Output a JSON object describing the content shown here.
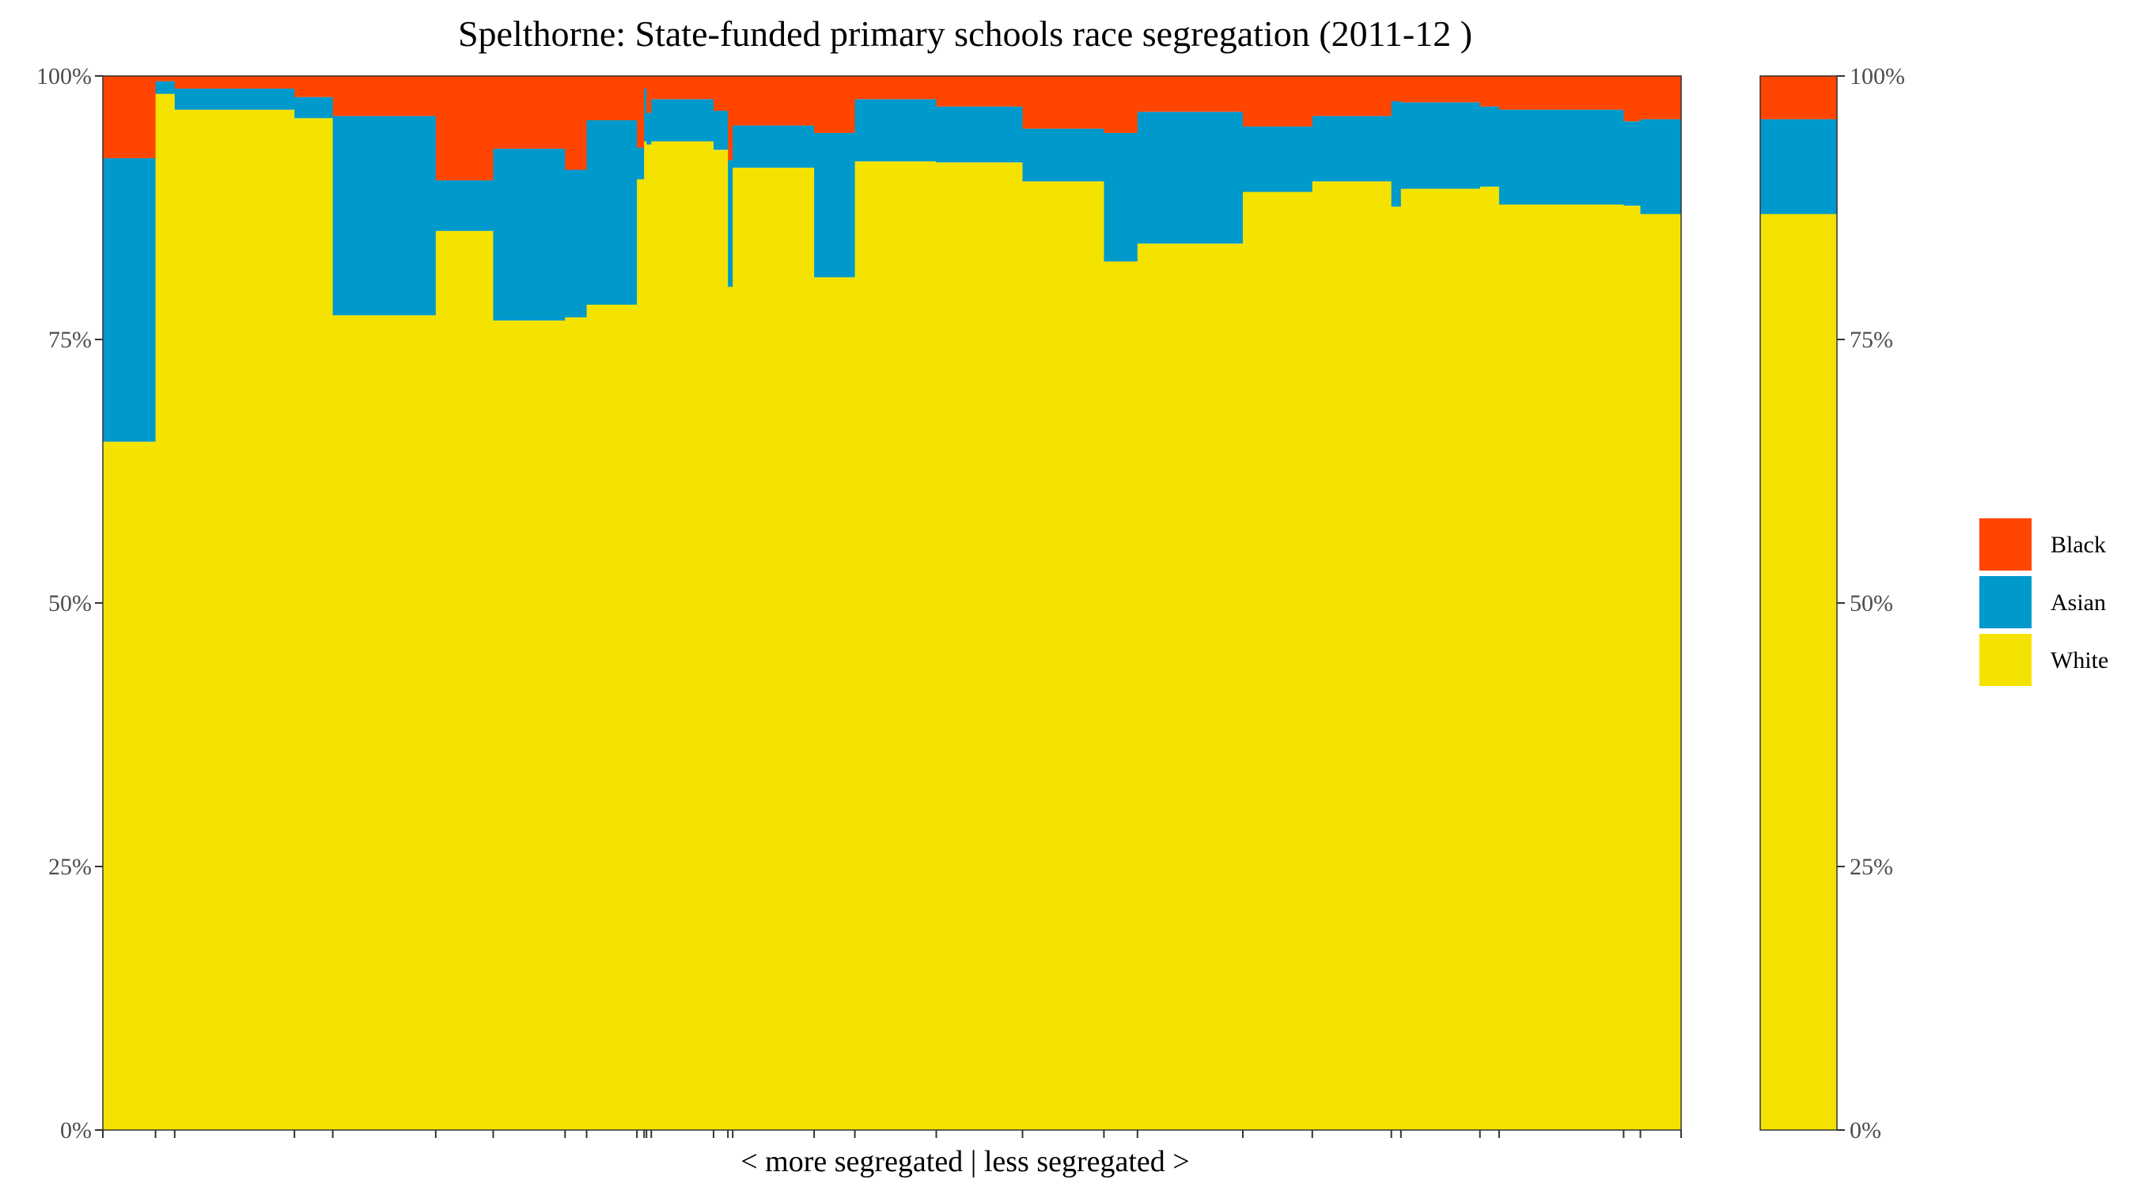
{
  "chart_data": {
    "type": "bar",
    "title": "Spelthorne: State-funded primary schools race segregation (2011-12 )",
    "xlabel": "< more segregated | less segregated >",
    "ylabel": "",
    "ylim": [
      0,
      100
    ],
    "yticks": [
      "0%",
      "25%",
      "50%",
      "75%",
      "100%"
    ],
    "stack_order": [
      "White",
      "Asian",
      "Black"
    ],
    "colors": {
      "White": "#F4E300",
      "Asian": "#0099CC",
      "Black": "#FF4500"
    },
    "legend": {
      "placement": "right",
      "entries": [
        "Black",
        "Asian",
        "White"
      ]
    },
    "grid": false,
    "schools": [
      {
        "w": 2.2,
        "White": 65.3,
        "Asian": 26.9,
        "Black": 7.8
      },
      {
        "w": 0.8,
        "White": 98.3,
        "Asian": 1.2,
        "Black": 0.5
      },
      {
        "w": 5.0,
        "White": 96.8,
        "Asian": 2.0,
        "Black": 1.2
      },
      {
        "w": 1.6,
        "White": 96.0,
        "Asian": 2.0,
        "Black": 2.0
      },
      {
        "w": 4.3,
        "White": 77.3,
        "Asian": 18.9,
        "Black": 3.8
      },
      {
        "w": 2.4,
        "White": 85.3,
        "Asian": 4.8,
        "Black": 9.9
      },
      {
        "w": 3.0,
        "White": 76.8,
        "Asian": 16.3,
        "Black": 6.9
      },
      {
        "w": 0.9,
        "White": 77.1,
        "Asian": 14.0,
        "Black": 8.9
      },
      {
        "w": 2.1,
        "White": 78.3,
        "Asian": 17.5,
        "Black": 4.2
      },
      {
        "w": 0.3,
        "White": 90.2,
        "Asian": 3.0,
        "Black": 6.8
      },
      {
        "w": 0.1,
        "White": 93.8,
        "Asian": 5.0,
        "Black": 1.2
      },
      {
        "w": 0.2,
        "White": 93.5,
        "Asian": 3.0,
        "Black": 3.5
      },
      {
        "w": 2.6,
        "White": 93.8,
        "Asian": 4.0,
        "Black": 2.2
      },
      {
        "w": 0.6,
        "White": 93.0,
        "Asian": 3.7,
        "Black": 3.3
      },
      {
        "w": 0.2,
        "White": 80.0,
        "Asian": 12.0,
        "Black": 8.0
      },
      {
        "w": 3.4,
        "White": 91.3,
        "Asian": 4.0,
        "Black": 4.7
      },
      {
        "w": 1.7,
        "White": 80.9,
        "Asian": 13.7,
        "Black": 5.4
      },
      {
        "w": 3.4,
        "White": 91.9,
        "Asian": 5.9,
        "Black": 2.2
      },
      {
        "w": 3.6,
        "White": 91.8,
        "Asian": 5.3,
        "Black": 2.9
      },
      {
        "w": 3.4,
        "White": 90.0,
        "Asian": 5.0,
        "Black": 5.0
      },
      {
        "w": 1.4,
        "White": 82.4,
        "Asian": 12.2,
        "Black": 5.4
      },
      {
        "w": 4.4,
        "White": 84.1,
        "Asian": 12.5,
        "Black": 3.4
      },
      {
        "w": 2.9,
        "White": 89.0,
        "Asian": 6.2,
        "Black": 4.8
      },
      {
        "w": 3.3,
        "White": 90.0,
        "Asian": 6.2,
        "Black": 3.8
      },
      {
        "w": 0.4,
        "White": 87.6,
        "Asian": 10.0,
        "Black": 2.4
      },
      {
        "w": 3.3,
        "White": 89.3,
        "Asian": 8.2,
        "Black": 2.5
      },
      {
        "w": 0.8,
        "White": 89.5,
        "Asian": 7.6,
        "Black": 2.9
      },
      {
        "w": 5.2,
        "White": 87.8,
        "Asian": 9.0,
        "Black": 3.2
      },
      {
        "w": 0.7,
        "White": 87.7,
        "Asian": 8.0,
        "Black": 4.3
      },
      {
        "w": 1.7,
        "White": 86.9,
        "Asian": 9.0,
        "Black": 4.1
      }
    ],
    "overall": {
      "White": 86.9,
      "Asian": 9.0,
      "Black": 4.1
    }
  }
}
